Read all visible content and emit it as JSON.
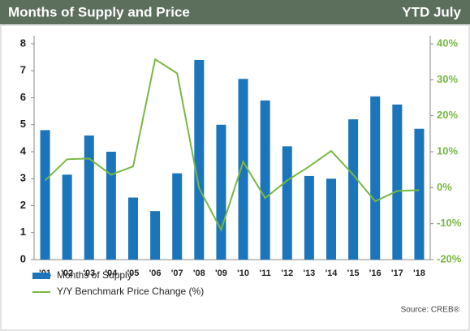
{
  "chart_data": {
    "type": "bar_line",
    "title": "Months of Supply and Price",
    "subtitle": "YTD July",
    "source": "Source: CREB®",
    "categories": [
      "'01",
      "'02",
      "'03",
      "'04",
      "'05",
      "'06",
      "'07",
      "'08",
      "'09",
      "'10",
      "'11",
      "'12",
      "'13",
      "'14",
      "'15",
      "'16",
      "'17",
      "'18"
    ],
    "series": [
      {
        "name": "Months of Supply",
        "color": "#1b75bb",
        "type": "bar",
        "values": [
          4.8,
          3.15,
          4.6,
          4.0,
          2.3,
          1.8,
          3.2,
          7.4,
          5.0,
          6.7,
          5.9,
          4.2,
          3.1,
          3.0,
          5.2,
          6.05,
          5.75,
          4.85
        ]
      },
      {
        "name": "Y/Y Benchmark Price Change (%)",
        "color": "#77b843",
        "type": "line",
        "axis": "y2",
        "values": [
          2,
          7.9,
          8.1,
          3.6,
          5.9,
          35.7,
          31.8,
          -0.2,
          -11.7,
          7.2,
          -2.9,
          2,
          5.9,
          10.2,
          3.6,
          -3.8,
          -0.9,
          -0.7
        ]
      }
    ],
    "ylim": [
      0,
      8
    ],
    "yticks": [
      0,
      1,
      2,
      3,
      4,
      5,
      6,
      7,
      8
    ],
    "y2lim": [
      -20,
      40
    ],
    "y2ticks": [
      {
        "value": -20,
        "label": "-20%"
      },
      {
        "value": -10,
        "label": "-10%"
      },
      {
        "value": 0,
        "label": "0%"
      },
      {
        "value": 10,
        "label": "10%"
      },
      {
        "value": 20,
        "label": "20%"
      },
      {
        "value": 30,
        "label": "30%"
      },
      {
        "value": 40,
        "label": "40%"
      }
    ]
  }
}
